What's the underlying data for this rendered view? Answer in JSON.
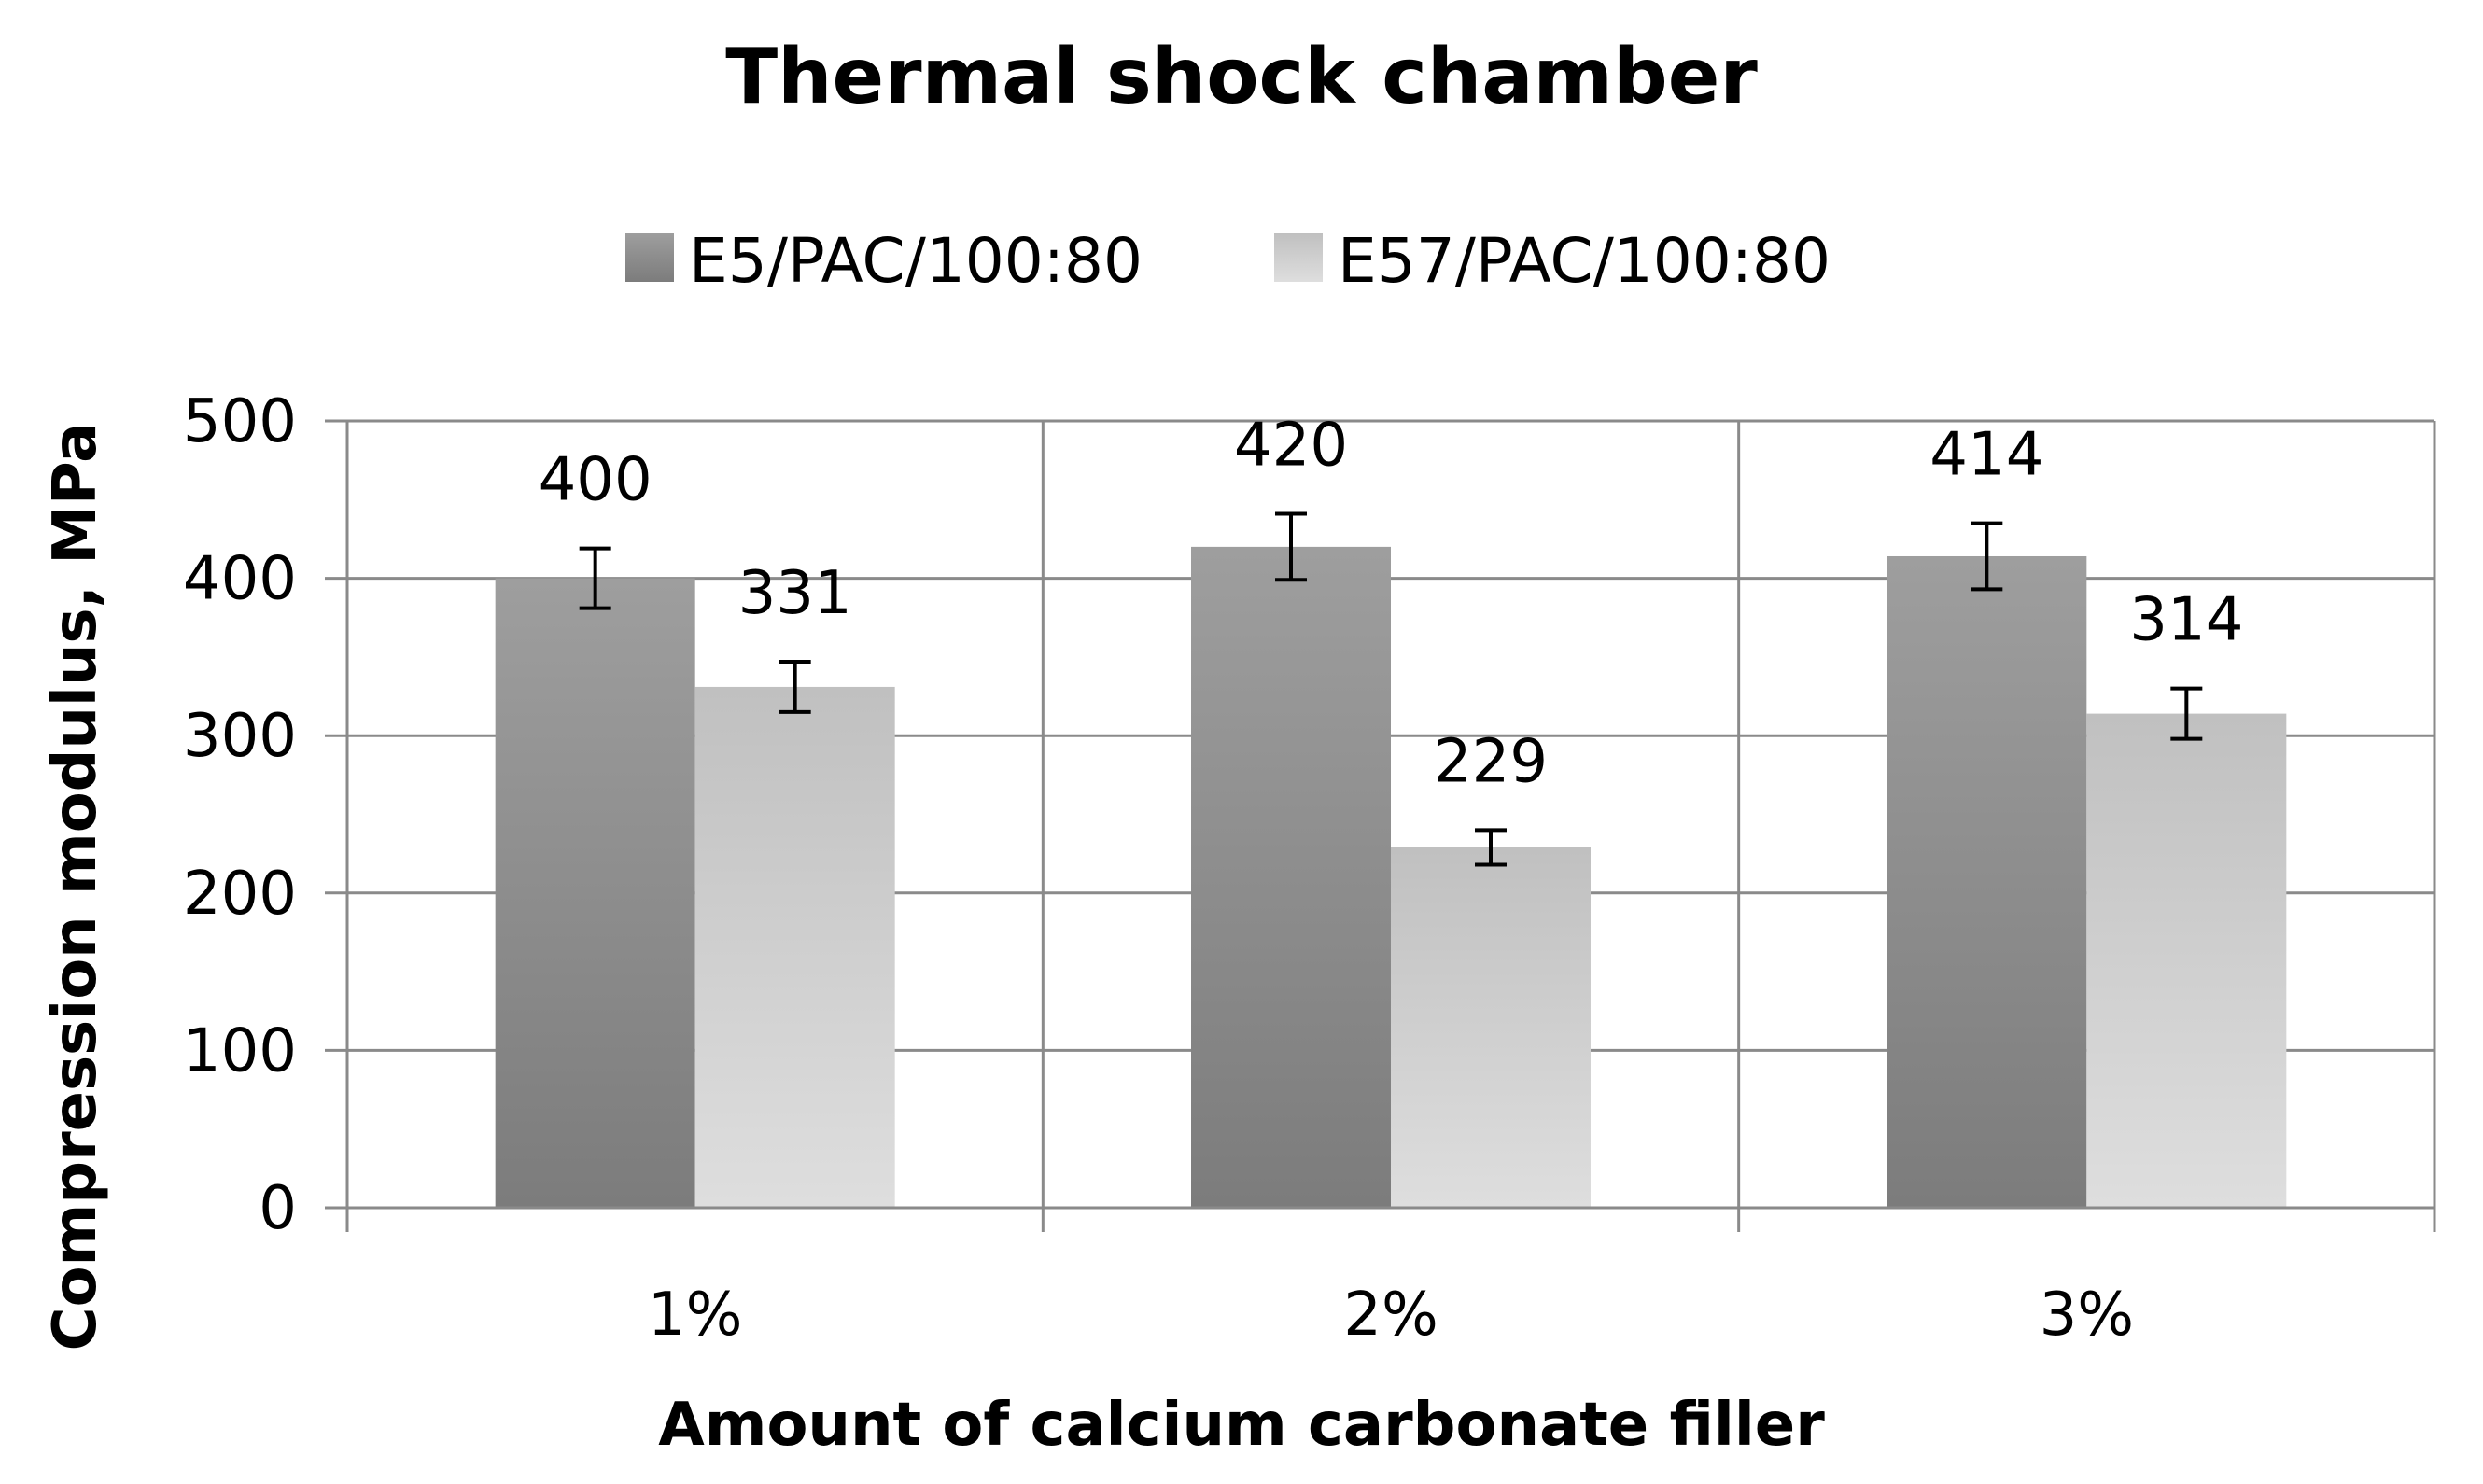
{
  "chart_data": {
    "type": "bar",
    "title": "Thermal shock chamber",
    "xlabel": "Amount of calcium carbonate filler",
    "ylabel": "Compression modulus, MPa",
    "categories": [
      "1%",
      "2%",
      "3%"
    ],
    "ylim": [
      0,
      500
    ],
    "yticks": [
      0,
      100,
      200,
      300,
      400,
      500
    ],
    "grid": true,
    "legend_position": "top",
    "series": [
      {
        "name": "E5/PAC/100:80",
        "values": [
          400,
          420,
          414
        ],
        "errors": [
          19,
          21,
          21
        ],
        "labels": [
          "400",
          "420",
          "414"
        ],
        "color": "#8c8c8c"
      },
      {
        "name": "E57/PAC/100:80",
        "values": [
          331,
          229,
          314
        ],
        "errors": [
          16,
          11,
          16
        ],
        "labels": [
          "331",
          "229",
          "314"
        ],
        "color": "#c4c4c4"
      }
    ]
  }
}
